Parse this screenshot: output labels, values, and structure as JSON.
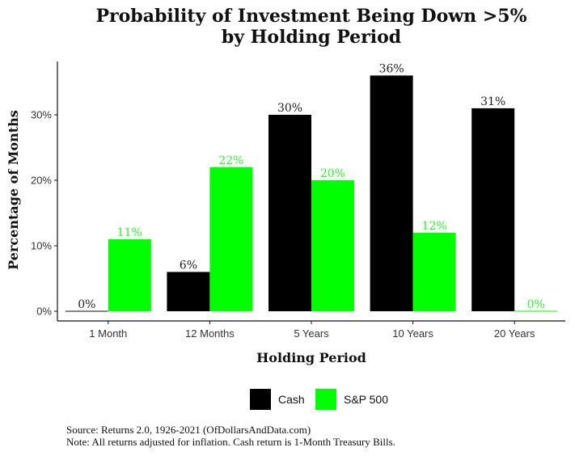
{
  "chart_data": {
    "type": "bar",
    "title_line1": "Probability of Investment Being Down >5%",
    "title_line2": "by Holding Period",
    "xlabel": "Holding Period",
    "ylabel": "Percentage of Months",
    "categories": [
      "1 Month",
      "12 Months",
      "5 Years",
      "10 Years",
      "20 Years"
    ],
    "series": [
      {
        "name": "Cash",
        "color": "#000000",
        "values": [
          0,
          6,
          30,
          36,
          31
        ],
        "labels": [
          "0%",
          "6%",
          "30%",
          "36%",
          "31%"
        ]
      },
      {
        "name": "S&P 500",
        "color": "#00ff00",
        "values": [
          11,
          22,
          20,
          12,
          0
        ],
        "labels": [
          "11%",
          "22%",
          "20%",
          "12%",
          "0%"
        ]
      }
    ],
    "ylim": [
      0,
      37
    ],
    "yticks": [
      0,
      10,
      20,
      30
    ],
    "ytick_labels": [
      "0%",
      "10%",
      "20%",
      "30%"
    ],
    "legend_position": "bottom",
    "grid": false
  },
  "footer": {
    "source": "Source: Returns 2.0, 1926-2021 (OfDollarsAndData.com)",
    "note": "Note: All returns adjusted for inflation. Cash return is 1-Month Treasury Bills."
  }
}
